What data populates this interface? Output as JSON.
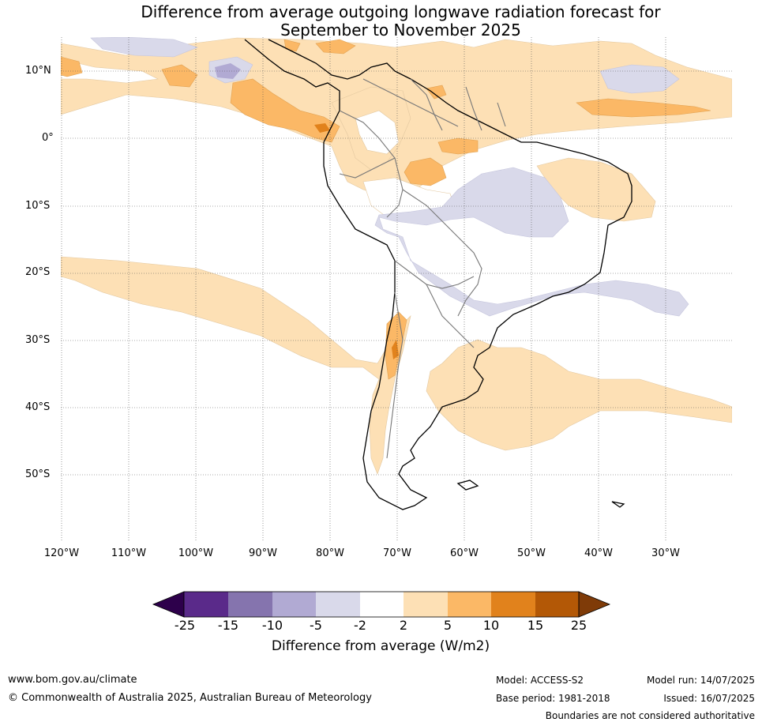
{
  "title": {
    "line1": "Difference from average outgoing longwave radiation forecast for",
    "line2": "September to November 2025"
  },
  "map": {
    "lat_labels": [
      "10°N",
      "0°",
      "10°S",
      "20°S",
      "30°S",
      "40°S",
      "50°S"
    ],
    "lon_labels": [
      "120°W",
      "110°W",
      "100°W",
      "90°W",
      "80°W",
      "70°W",
      "60°W",
      "50°W",
      "40°W",
      "30°W"
    ],
    "colors": {
      "below_-15": "#5a2a8a",
      "-15_-10": "#8574ae",
      "-10_-5": "#b1aad3",
      "-5_-2": "#d9d9ea",
      "-2_2": "#ffffff",
      "2_5": "#fde0b5",
      "5_10": "#fbb866",
      "10_15": "#e1821c",
      "15_25": "#b35806",
      "extreme_low": "#2d004b",
      "extreme_high": "#7f3b08"
    }
  },
  "colorbar": {
    "ticks": [
      "-25",
      "-15",
      "-10",
      "-5",
      "-2",
      "2",
      "5",
      "10",
      "15",
      "25"
    ],
    "label": "Difference from average (W/m2)"
  },
  "footer": {
    "website": "www.bom.gov.au/climate",
    "copyright": "© Commonwealth of Australia 2025, Australian Bureau of Meteorology",
    "model": "Model: ACCESS-S2",
    "base_period": "Base period: 1981-2018",
    "model_run": "Model run: 14/07/2025",
    "issued": "Issued: 16/07/2025",
    "disclaimer": "Boundaries are not considered authoritative"
  }
}
